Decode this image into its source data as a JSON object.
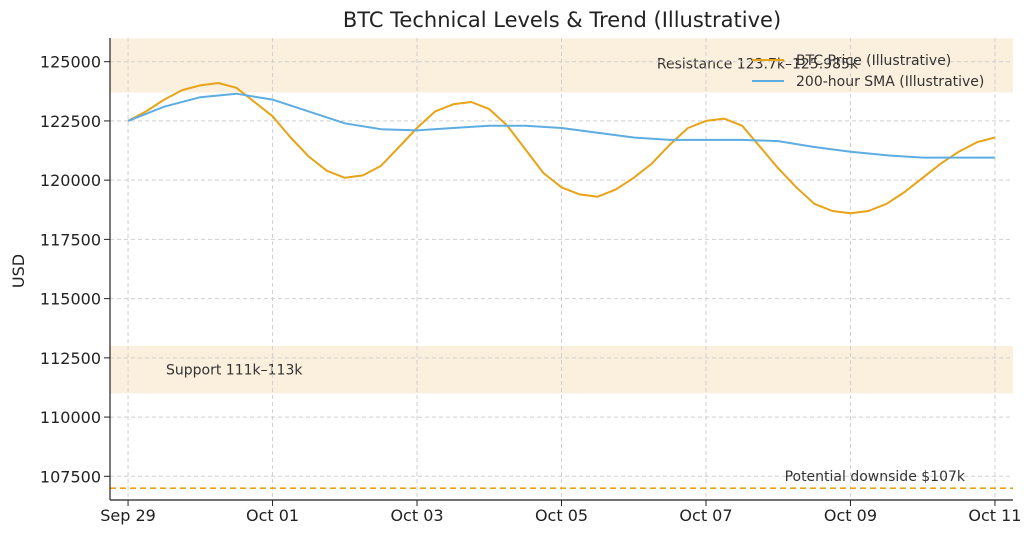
{
  "chart_data": {
    "type": "line",
    "title": "BTC Technical Levels & Trend (Illustrative)",
    "xlabel": "",
    "ylabel": "USD",
    "x_ticks": [
      "Sep 29",
      "Oct 01",
      "Oct 03",
      "Oct 05",
      "Oct 07",
      "Oct 09",
      "Oct 11"
    ],
    "y_ticks": [
      107500,
      110000,
      112500,
      115000,
      117500,
      120000,
      122500,
      125000
    ],
    "xlim": [
      "2025-09-28T18:00",
      "2025-10-11T06:00"
    ],
    "ylim": [
      106500,
      126000
    ],
    "grid": true,
    "legend_position": "top-right",
    "series": [
      {
        "name": "BTC Price (Illustrative)",
        "color": "#E8A317",
        "x": [
          "2025-09-29T00:00",
          "2025-09-29T06:00",
          "2025-09-29T12:00",
          "2025-09-29T18:00",
          "2025-09-30T00:00",
          "2025-09-30T06:00",
          "2025-09-30T12:00",
          "2025-09-30T18:00",
          "2025-10-01T00:00",
          "2025-10-01T06:00",
          "2025-10-01T12:00",
          "2025-10-01T18:00",
          "2025-10-02T00:00",
          "2025-10-02T06:00",
          "2025-10-02T12:00",
          "2025-10-02T18:00",
          "2025-10-03T00:00",
          "2025-10-03T06:00",
          "2025-10-03T12:00",
          "2025-10-03T18:00",
          "2025-10-04T00:00",
          "2025-10-04T06:00",
          "2025-10-04T12:00",
          "2025-10-04T18:00",
          "2025-10-05T00:00",
          "2025-10-05T06:00",
          "2025-10-05T12:00",
          "2025-10-05T18:00",
          "2025-10-06T00:00",
          "2025-10-06T06:00",
          "2025-10-06T12:00",
          "2025-10-06T18:00",
          "2025-10-07T00:00",
          "2025-10-07T06:00",
          "2025-10-07T12:00",
          "2025-10-07T18:00",
          "2025-10-08T00:00",
          "2025-10-08T06:00",
          "2025-10-08T12:00",
          "2025-10-08T18:00",
          "2025-10-09T00:00",
          "2025-10-09T06:00",
          "2025-10-09T12:00",
          "2025-10-09T18:00",
          "2025-10-10T00:00",
          "2025-10-10T06:00",
          "2025-10-10T12:00",
          "2025-10-10T18:00",
          "2025-10-11T00:00"
        ],
        "values": [
          122500,
          122900,
          123400,
          123800,
          124000,
          124100,
          123900,
          123300,
          122700,
          121800,
          121000,
          120400,
          120100,
          120200,
          120600,
          121400,
          122200,
          122900,
          123200,
          123300,
          123000,
          122300,
          121300,
          120300,
          119700,
          119400,
          119300,
          119600,
          120100,
          120700,
          121500,
          122200,
          122500,
          122600,
          122300,
          121400,
          120500,
          119700,
          119000,
          118700,
          118600,
          118700,
          119000,
          119500,
          120100,
          120700,
          121200,
          121600,
          121800
        ]
      },
      {
        "name": "200-hour SMA (Illustrative)",
        "color": "#5DADE2",
        "x": [
          "2025-09-29T00:00",
          "2025-09-29T12:00",
          "2025-09-30T00:00",
          "2025-09-30T12:00",
          "2025-10-01T00:00",
          "2025-10-01T12:00",
          "2025-10-02T00:00",
          "2025-10-02T12:00",
          "2025-10-03T00:00",
          "2025-10-03T12:00",
          "2025-10-04T00:00",
          "2025-10-04T12:00",
          "2025-10-05T00:00",
          "2025-10-05T12:00",
          "2025-10-06T00:00",
          "2025-10-06T12:00",
          "2025-10-07T00:00",
          "2025-10-07T12:00",
          "2025-10-08T00:00",
          "2025-10-08T12:00",
          "2025-10-09T00:00",
          "2025-10-09T12:00",
          "2025-10-10T00:00",
          "2025-10-10T12:00",
          "2025-10-11T00:00"
        ],
        "values": [
          122500,
          123100,
          123500,
          123650,
          123400,
          122900,
          122400,
          122150,
          122100,
          122200,
          122300,
          122300,
          122200,
          122000,
          121800,
          121700,
          121700,
          121700,
          121650,
          121400,
          121200,
          121050,
          120950,
          120950,
          120950
        ]
      }
    ],
    "bands": [
      {
        "label": "Resistance 123.7k–125.985k",
        "y_from": 123700,
        "y_to": 125985,
        "color": "#FBEFDD"
      },
      {
        "label": "Support 111k–113k",
        "y_from": 111000,
        "y_to": 113000,
        "color": "#FBEFDD"
      }
    ],
    "hlines": [
      {
        "label": "Potential downside $107k",
        "y": 107000,
        "color": "#E8A317"
      }
    ]
  }
}
